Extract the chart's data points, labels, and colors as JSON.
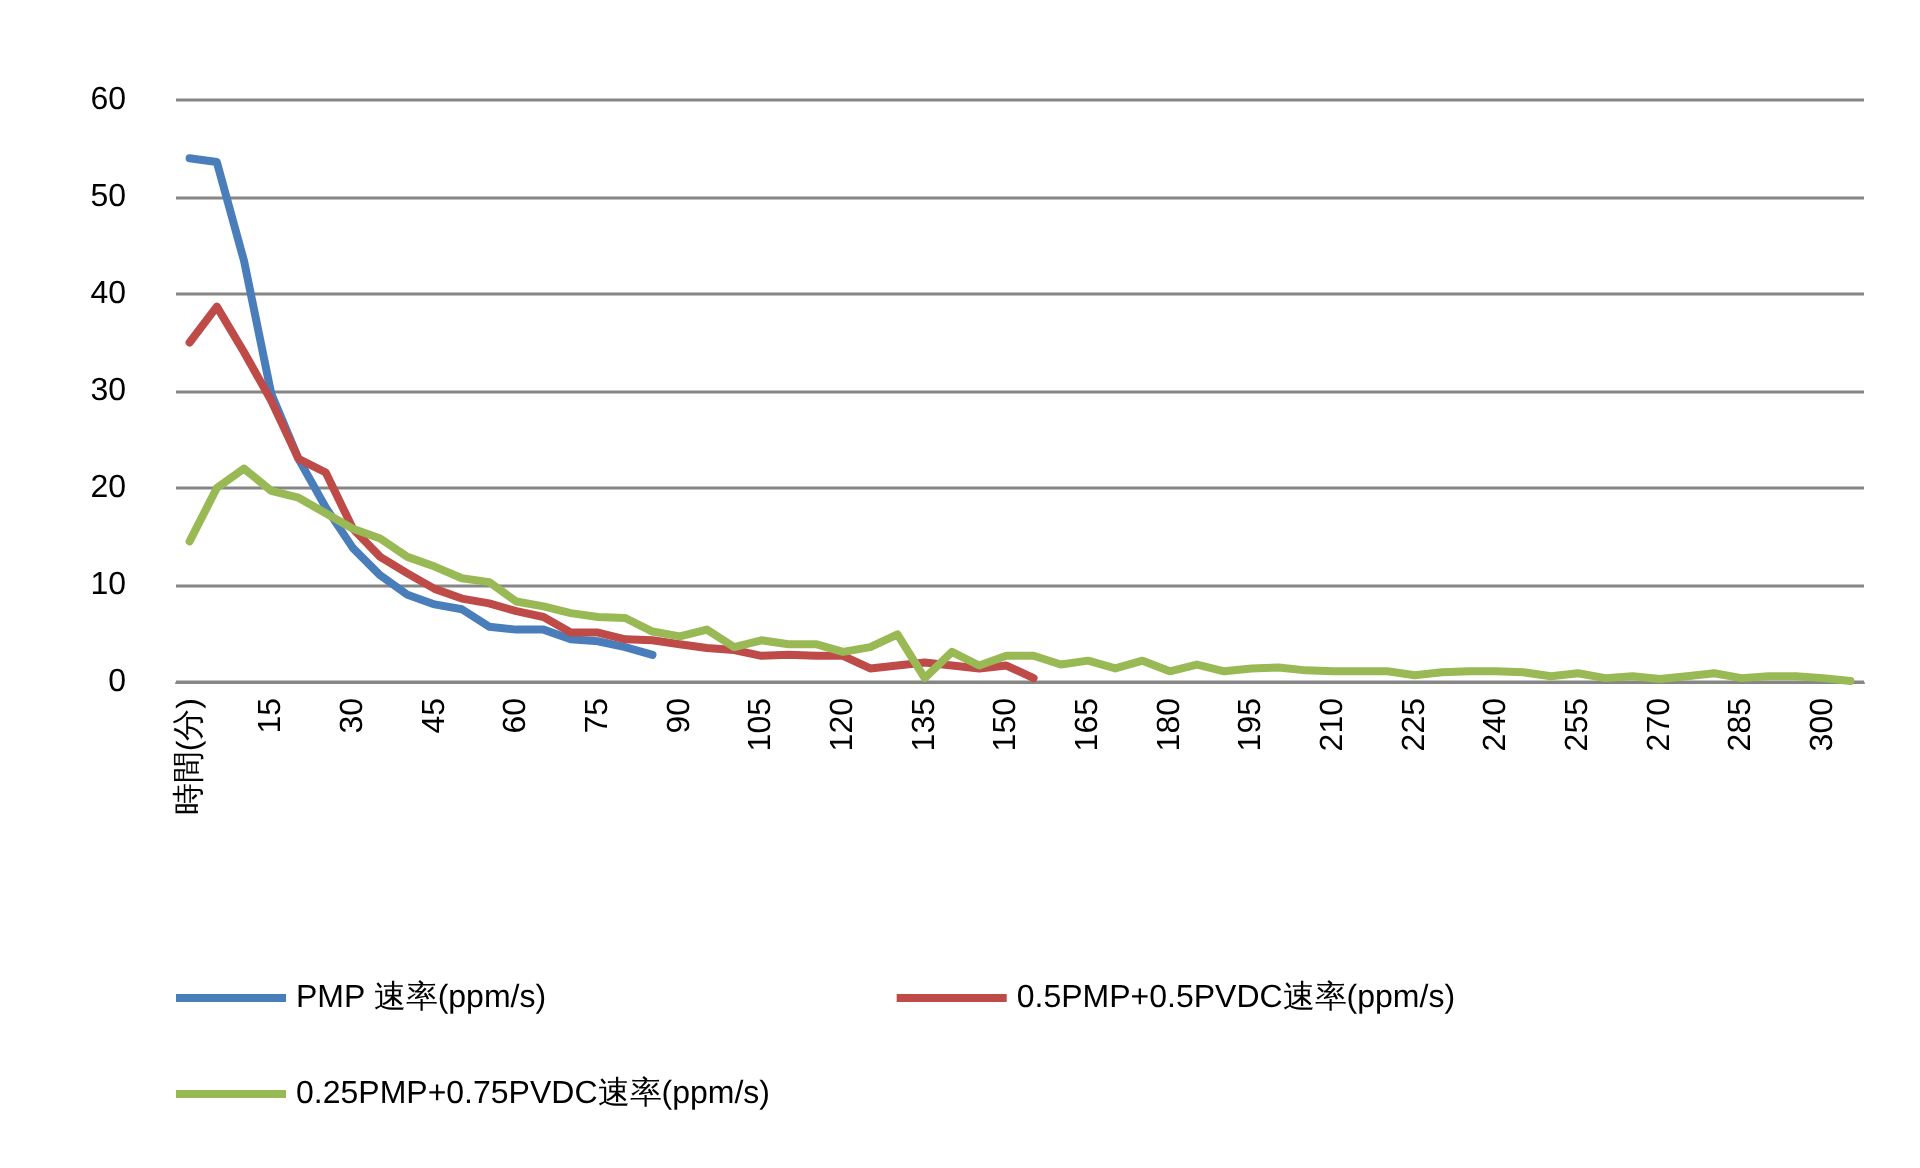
{
  "chart_data": {
    "type": "line",
    "categories": [
      "時間(分)",
      null,
      null,
      "15",
      null,
      null,
      "30",
      null,
      null,
      "45",
      null,
      null,
      "60",
      null,
      null,
      "75",
      null,
      null,
      "90",
      null,
      null,
      "105",
      null,
      null,
      "120",
      null,
      null,
      "135",
      null,
      null,
      "150",
      null,
      null,
      "165",
      null,
      null,
      "180",
      null,
      null,
      "195",
      null,
      null,
      "210",
      null,
      null,
      "225",
      null,
      null,
      "240",
      null,
      null,
      "255",
      null,
      null,
      "270",
      null,
      null,
      "285",
      null,
      null,
      "300",
      null
    ],
    "series": [
      {
        "name": "PMP 速率(ppm/s)",
        "color": "#4a7ebb",
        "values": [
          54,
          53.6,
          43.4,
          29.7,
          23,
          18,
          13.8,
          11,
          9,
          8,
          7.5,
          5.7,
          5.4,
          5.4,
          4.4,
          4.2,
          3.6,
          2.8,
          null,
          null,
          null,
          null,
          null,
          null,
          null,
          null,
          null,
          null,
          null,
          null,
          null,
          null,
          null,
          null,
          null,
          null,
          null,
          null,
          null,
          null,
          null,
          null,
          null,
          null,
          null,
          null,
          null,
          null,
          null,
          null,
          null,
          null,
          null,
          null,
          null,
          null,
          null,
          null,
          null,
          null,
          null,
          null
        ]
      },
      {
        "name": "0.5PMP+0.5PVDC速率(ppm/s)",
        "color": "#be4b48",
        "values": [
          35,
          38.7,
          34,
          29,
          23,
          21.6,
          15.8,
          12.9,
          11.2,
          9.6,
          8.6,
          8.1,
          7.3,
          6.7,
          5.1,
          5.1,
          4.4,
          4.3,
          3.9,
          3.5,
          3.3,
          2.7,
          2.8,
          2.7,
          2.7,
          1.4,
          1.7,
          2,
          1.7,
          1.4,
          1.7,
          0.4,
          null,
          null,
          null,
          null,
          null,
          null,
          null,
          null,
          null,
          null,
          null,
          null,
          null,
          null,
          null,
          null,
          null,
          null,
          null,
          null,
          null,
          null,
          null,
          null,
          null,
          null,
          null,
          null,
          null,
          null
        ]
      },
      {
        "name": "0.25PMP+0.75PVDC速率(ppm/s)",
        "color": "#98b954",
        "values": [
          14.5,
          20,
          22,
          19.7,
          19,
          17.4,
          15.8,
          14.8,
          12.9,
          11.9,
          10.7,
          10.3,
          8.3,
          7.8,
          7.1,
          6.7,
          6.6,
          5.2,
          4.7,
          5.4,
          3.6,
          4.3,
          3.9,
          3.9,
          3.1,
          3.6,
          4.9,
          0.4,
          3.1,
          1.7,
          2.7,
          2.7,
          1.8,
          2.2,
          1.4,
          2.2,
          1.1,
          1.8,
          1.1,
          1.4,
          1.5,
          1.2,
          1.1,
          1.1,
          1.1,
          0.7,
          1,
          1.1,
          1.1,
          1,
          0.6,
          0.9,
          0.4,
          0.6,
          0.3,
          0.6,
          0.9,
          0.4,
          0.6,
          0.6,
          0.4,
          0.1
        ]
      }
    ],
    "ylim": [
      0,
      60
    ],
    "yticks": [
      0,
      10,
      20,
      30,
      40,
      50,
      60
    ],
    "grid": "y",
    "legend": "bottom",
    "marker": "none"
  }
}
